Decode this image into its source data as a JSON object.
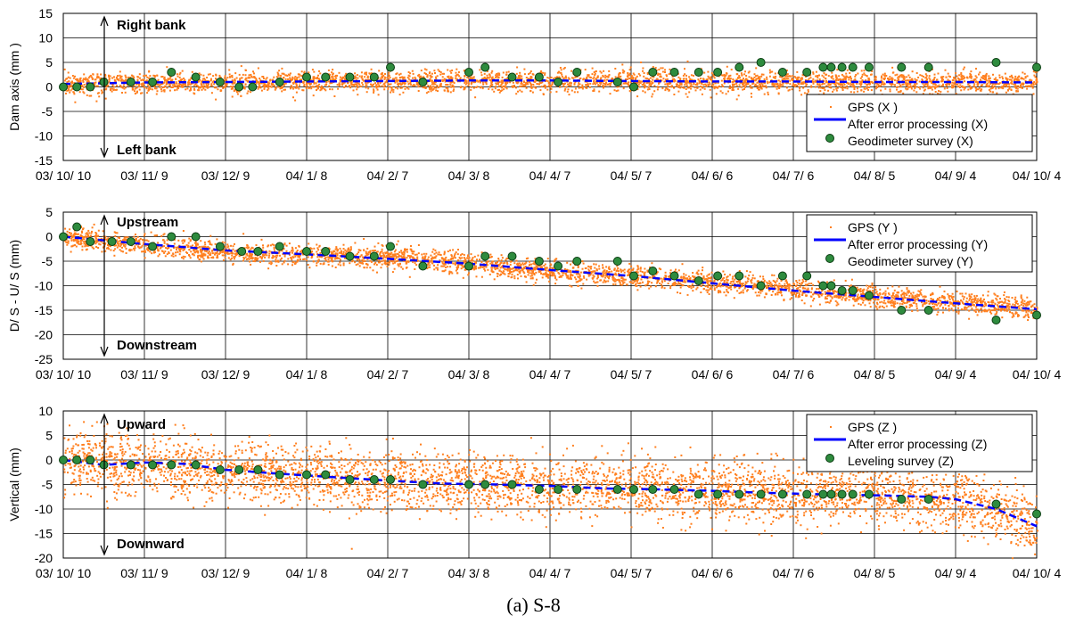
{
  "caption": "(a) S-8",
  "colors": {
    "gps": "#ff7f1e",
    "processed": "#0000ff",
    "survey_fill": "#2e8b3e",
    "survey_stroke": "#0b3d12",
    "grid": "#000000"
  },
  "x_tick_labels": [
    "03/ 10/ 10",
    "03/ 11/ 9",
    "03/ 12/ 9",
    "04/ 1/ 8",
    "04/ 2/ 7",
    "04/ 3/ 8",
    "04/ 4/ 7",
    "04/ 5/ 7",
    "04/ 6/ 6",
    "04/ 7/ 6",
    "04/ 8/ 5",
    "04/ 9/ 4",
    "04/ 10/ 4"
  ],
  "chart_data": [
    {
      "type": "scatter",
      "ylabel": "Dam axis (mm )",
      "ylim": [
        -15,
        15
      ],
      "yticks": [
        15,
        10,
        5,
        0,
        -5,
        -10,
        -15
      ],
      "grid": true,
      "legend_position": "bottom-right",
      "annotation_top": "Right  bank",
      "annotation_bottom": "Left  bank",
      "series": [
        {
          "name": "GPS (X )",
          "kind": "dots",
          "mean_trend": [
            [
              0,
              0.8
            ],
            [
              180,
              1.4
            ],
            [
              360,
              1.0
            ]
          ],
          "spread": 1.8
        },
        {
          "name": "After error processing (X)",
          "kind": "line",
          "points": [
            [
              0,
              0.6
            ],
            [
              30,
              0.9
            ],
            [
              60,
              1.0
            ],
            [
              90,
              1.1
            ],
            [
              120,
              1.2
            ],
            [
              150,
              1.3
            ],
            [
              180,
              1.3
            ],
            [
              210,
              1.2
            ],
            [
              240,
              1.1
            ],
            [
              270,
              1.1
            ],
            [
              300,
              1.0
            ],
            [
              330,
              1.0
            ],
            [
              360,
              0.9
            ]
          ]
        },
        {
          "name": "Geodimeter survey (X)",
          "kind": "markers",
          "points": [
            [
              0,
              0
            ],
            [
              5,
              0
            ],
            [
              10,
              0
            ],
            [
              15,
              1
            ],
            [
              25,
              1
            ],
            [
              33,
              1
            ],
            [
              40,
              3
            ],
            [
              49,
              2
            ],
            [
              58,
              1
            ],
            [
              65,
              0
            ],
            [
              70,
              0
            ],
            [
              80,
              1
            ],
            [
              90,
              2
            ],
            [
              97,
              2
            ],
            [
              106,
              2
            ],
            [
              115,
              2
            ],
            [
              121,
              4
            ],
            [
              133,
              1
            ],
            [
              150,
              3
            ],
            [
              156,
              4
            ],
            [
              166,
              2
            ],
            [
              176,
              2
            ],
            [
              183,
              1
            ],
            [
              190,
              3
            ],
            [
              205,
              1
            ],
            [
              211,
              0
            ],
            [
              218,
              3
            ],
            [
              226,
              3
            ],
            [
              235,
              3
            ],
            [
              242,
              3
            ],
            [
              250,
              4
            ],
            [
              258,
              5
            ],
            [
              266,
              3
            ],
            [
              275,
              3
            ],
            [
              281,
              4
            ],
            [
              284,
              4
            ],
            [
              288,
              4
            ],
            [
              292,
              4
            ],
            [
              298,
              4
            ],
            [
              310,
              4
            ],
            [
              320,
              4
            ],
            [
              345,
              5
            ],
            [
              360,
              4
            ]
          ]
        }
      ]
    },
    {
      "type": "scatter",
      "ylabel": "D/ S -  U/ S  (mm)",
      "ylim": [
        -25,
        5
      ],
      "yticks": [
        5,
        0,
        -5,
        -10,
        -15,
        -20,
        -25
      ],
      "grid": true,
      "legend_position": "top-right",
      "annotation_top": "Upstream",
      "annotation_bottom": "Downstream",
      "series": [
        {
          "name": "GPS (Y )",
          "kind": "dots",
          "mean_trend": [
            [
              0,
              0
            ],
            [
              60,
              -3
            ],
            [
              120,
              -4
            ],
            [
              180,
              -7
            ],
            [
              240,
              -9
            ],
            [
              300,
              -12
            ],
            [
              360,
              -14.5
            ]
          ],
          "spread": 1.8
        },
        {
          "name": "After error processing (Y)",
          "kind": "line",
          "points": [
            [
              0,
              0
            ],
            [
              30,
              -1.5
            ],
            [
              60,
              -2.8
            ],
            [
              90,
              -3.6
            ],
            [
              120,
              -4.5
            ],
            [
              150,
              -5.5
            ],
            [
              180,
              -6.8
            ],
            [
              210,
              -8
            ],
            [
              240,
              -9.5
            ],
            [
              270,
              -11
            ],
            [
              300,
              -12.3
            ],
            [
              330,
              -13.6
            ],
            [
              360,
              -14.8
            ]
          ]
        },
        {
          "name": "Geodimeter survey (Y)",
          "kind": "markers",
          "points": [
            [
              0,
              0
            ],
            [
              5,
              2
            ],
            [
              10,
              -1
            ],
            [
              18,
              -1
            ],
            [
              25,
              -1
            ],
            [
              33,
              -2
            ],
            [
              40,
              0
            ],
            [
              49,
              0
            ],
            [
              58,
              -2
            ],
            [
              66,
              -3
            ],
            [
              72,
              -3
            ],
            [
              80,
              -2
            ],
            [
              90,
              -3
            ],
            [
              97,
              -3
            ],
            [
              106,
              -4
            ],
            [
              115,
              -4
            ],
            [
              121,
              -2
            ],
            [
              133,
              -6
            ],
            [
              150,
              -6
            ],
            [
              156,
              -4
            ],
            [
              166,
              -4
            ],
            [
              176,
              -5
            ],
            [
              183,
              -6
            ],
            [
              190,
              -5
            ],
            [
              205,
              -5
            ],
            [
              211,
              -8
            ],
            [
              218,
              -7
            ],
            [
              226,
              -8
            ],
            [
              235,
              -9
            ],
            [
              242,
              -8
            ],
            [
              250,
              -8
            ],
            [
              258,
              -10
            ],
            [
              266,
              -8
            ],
            [
              275,
              -8
            ],
            [
              281,
              -10
            ],
            [
              284,
              -10
            ],
            [
              288,
              -11
            ],
            [
              292,
              -11
            ],
            [
              298,
              -12
            ],
            [
              310,
              -15
            ],
            [
              320,
              -15
            ],
            [
              345,
              -17
            ],
            [
              360,
              -16
            ]
          ]
        }
      ]
    },
    {
      "type": "scatter",
      "ylabel": "Vertical  (mm)",
      "ylim": [
        -20,
        10
      ],
      "yticks": [
        10,
        5,
        0,
        -5,
        -10,
        -15,
        -20
      ],
      "grid": true,
      "legend_position": "top-right",
      "annotation_top": "Upward",
      "annotation_bottom": "Downward",
      "series": [
        {
          "name": "GPS (Z )",
          "kind": "dots",
          "mean_trend": [
            [
              0,
              0
            ],
            [
              60,
              -2
            ],
            [
              120,
              -4
            ],
            [
              180,
              -5
            ],
            [
              240,
              -6
            ],
            [
              300,
              -7
            ],
            [
              330,
              -8
            ],
            [
              360,
              -13
            ]
          ],
          "spread": 5
        },
        {
          "name": "After error processing (Z)",
          "kind": "line",
          "points": [
            [
              0,
              0
            ],
            [
              15,
              -1
            ],
            [
              30,
              -0.5
            ],
            [
              45,
              -0.8
            ],
            [
              60,
              -2
            ],
            [
              80,
              -2.8
            ],
            [
              100,
              -3.5
            ],
            [
              120,
              -4.2
            ],
            [
              140,
              -4.8
            ],
            [
              160,
              -5
            ],
            [
              180,
              -5.3
            ],
            [
              200,
              -5.8
            ],
            [
              220,
              -6
            ],
            [
              240,
              -6.3
            ],
            [
              260,
              -6.7
            ],
            [
              280,
              -7
            ],
            [
              300,
              -7.2
            ],
            [
              320,
              -7.5
            ],
            [
              330,
              -8
            ],
            [
              345,
              -10
            ],
            [
              360,
              -13.5
            ]
          ]
        },
        {
          "name": "Leveling survey (Z)",
          "kind": "markers",
          "points": [
            [
              0,
              0
            ],
            [
              5,
              0
            ],
            [
              10,
              0
            ],
            [
              15,
              -1
            ],
            [
              25,
              -1
            ],
            [
              33,
              -1
            ],
            [
              40,
              -1
            ],
            [
              49,
              -1
            ],
            [
              58,
              -2
            ],
            [
              65,
              -2
            ],
            [
              72,
              -2
            ],
            [
              80,
              -3
            ],
            [
              90,
              -3
            ],
            [
              97,
              -3
            ],
            [
              106,
              -4
            ],
            [
              115,
              -4
            ],
            [
              121,
              -4
            ],
            [
              133,
              -5
            ],
            [
              150,
              -5
            ],
            [
              156,
              -5
            ],
            [
              166,
              -5
            ],
            [
              176,
              -6
            ],
            [
              183,
              -6
            ],
            [
              190,
              -6
            ],
            [
              205,
              -6
            ],
            [
              211,
              -6
            ],
            [
              218,
              -6
            ],
            [
              226,
              -6
            ],
            [
              235,
              -7
            ],
            [
              242,
              -7
            ],
            [
              250,
              -7
            ],
            [
              258,
              -7
            ],
            [
              266,
              -7
            ],
            [
              275,
              -7
            ],
            [
              281,
              -7
            ],
            [
              284,
              -7
            ],
            [
              288,
              -7
            ],
            [
              292,
              -7
            ],
            [
              298,
              -7
            ],
            [
              310,
              -8
            ],
            [
              320,
              -8
            ],
            [
              345,
              -9
            ],
            [
              360,
              -11
            ]
          ]
        }
      ]
    }
  ]
}
